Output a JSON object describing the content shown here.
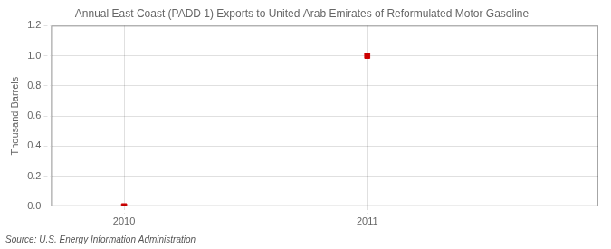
{
  "chart_data": {
    "type": "scatter",
    "title": "Annual East Coast (PADD 1) Exports to United Arab Emirates of Reformulated Motor Gasoline",
    "ylabel": "Thousand Barrels",
    "annotation": "Source: U.S. Energy Information Administration",
    "x": [
      2010,
      2011
    ],
    "values": [
      0,
      1.0
    ],
    "color": "#cc0000",
    "marker": "square",
    "xlim": [
      2009.7,
      2011.95
    ],
    "xticks": [
      2010,
      2011
    ],
    "ylim": [
      0,
      1.2
    ],
    "yticks": [
      {
        "value": 0.0,
        "label": "0.0"
      },
      0.2,
      0.4,
      0.6,
      0.8,
      {
        "value": 1.0,
        "label": "1.0"
      },
      1.2
    ],
    "grid": true
  }
}
